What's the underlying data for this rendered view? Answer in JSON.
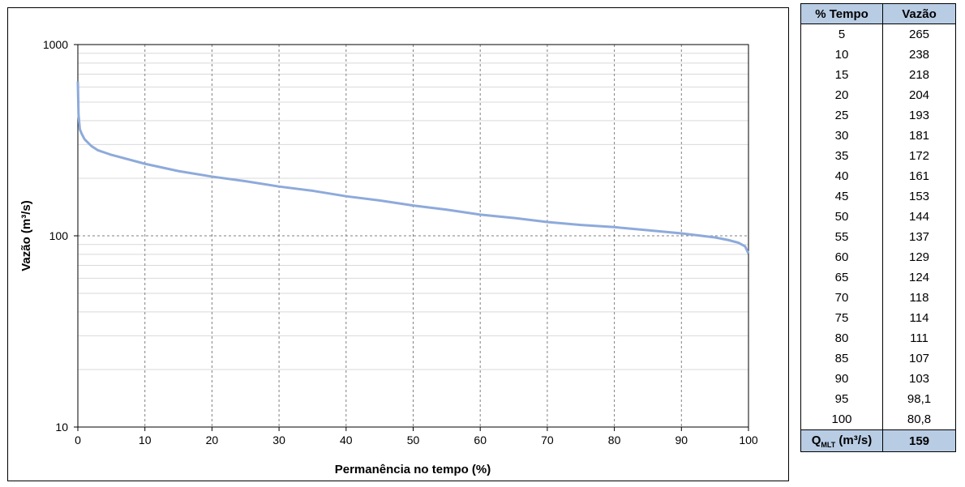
{
  "chart_data": {
    "type": "line",
    "xlabel": "Permanência no tempo (%)",
    "ylabel": "Vazão (m³/s)",
    "xlim": [
      0,
      100
    ],
    "ylim": [
      10,
      1000
    ],
    "yscale": "log",
    "grid": true,
    "x_ticks": [
      "0",
      "10",
      "20",
      "30",
      "40",
      "50",
      "60",
      "70",
      "80",
      "90",
      "100"
    ],
    "y_ticks": [
      "10",
      "100",
      "1000"
    ],
    "series": [
      {
        "color": "#8eaadb",
        "x": [
          0,
          0.1,
          0.3,
          0.6,
          1,
          2,
          3,
          5,
          10,
          15,
          20,
          25,
          30,
          35,
          40,
          45,
          50,
          55,
          60,
          65,
          70,
          75,
          80,
          85,
          90,
          95,
          97,
          98.5,
          99.5,
          100
        ],
        "y": [
          640,
          430,
          360,
          340,
          320,
          295,
          280,
          265,
          238,
          218,
          204,
          193,
          181,
          172,
          161,
          153,
          144,
          137,
          129,
          124,
          118,
          114,
          111,
          107,
          103,
          98.1,
          95,
          92,
          88,
          80.8
        ]
      }
    ]
  },
  "table": {
    "headers": [
      "% Tempo",
      "Vazão"
    ],
    "rows": [
      [
        "5",
        "265"
      ],
      [
        "10",
        "238"
      ],
      [
        "15",
        "218"
      ],
      [
        "20",
        "204"
      ],
      [
        "25",
        "193"
      ],
      [
        "30",
        "181"
      ],
      [
        "35",
        "172"
      ],
      [
        "40",
        "161"
      ],
      [
        "45",
        "153"
      ],
      [
        "50",
        "144"
      ],
      [
        "55",
        "137"
      ],
      [
        "60",
        "129"
      ],
      [
        "65",
        "124"
      ],
      [
        "70",
        "118"
      ],
      [
        "75",
        "114"
      ],
      [
        "80",
        "111"
      ],
      [
        "85",
        "107"
      ],
      [
        "90",
        "103"
      ],
      [
        "95",
        "98,1"
      ],
      [
        "100",
        "80,8"
      ]
    ],
    "footer": {
      "label_main": "Q",
      "label_sub": "MLT",
      "label_unit": " (m³/s)",
      "value": "159"
    }
  }
}
